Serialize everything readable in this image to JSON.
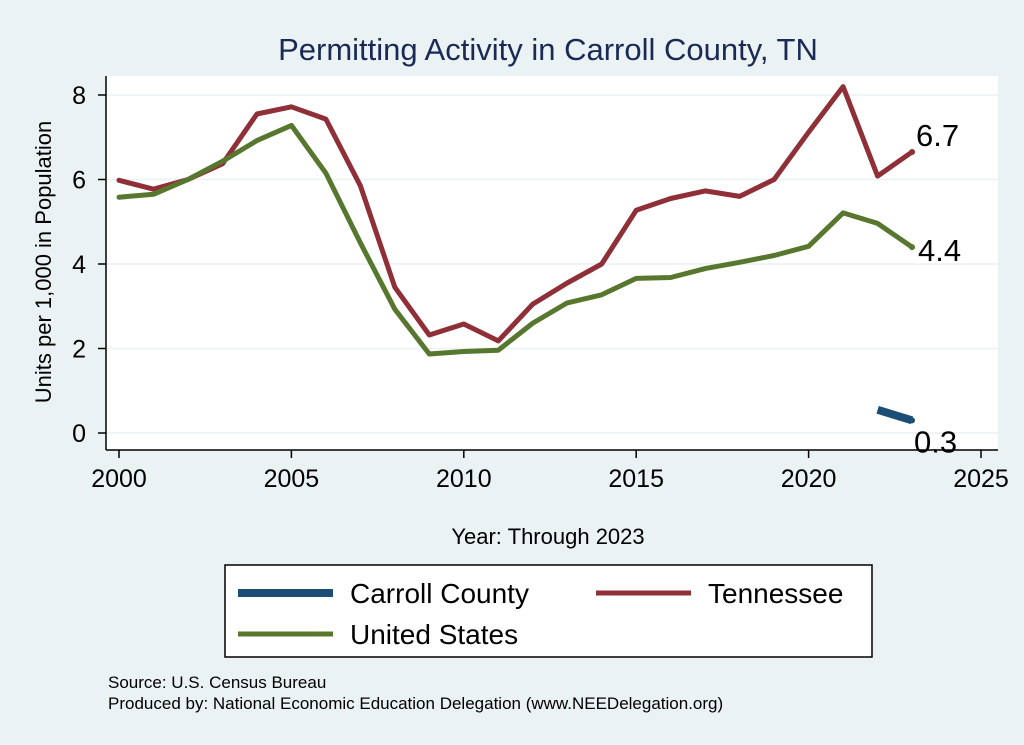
{
  "chart_data": {
    "type": "line",
    "title": "Permitting Activity in Carroll County, TN",
    "xlabel": "Year: Through 2023",
    "ylabel": "Units per 1,000 in Population",
    "xlim": [
      2000,
      2025
    ],
    "ylim": [
      0,
      8
    ],
    "xticks": [
      "2000",
      "2005",
      "2010",
      "2015",
      "2020",
      "2025"
    ],
    "yticks": [
      "0",
      "2",
      "4",
      "6",
      "8"
    ],
    "grid": true,
    "legend_position": "bottom",
    "series": [
      {
        "name": "Carroll County",
        "color": "#1c4d74",
        "x": [
          2022,
          2023
        ],
        "values": [
          0.55,
          0.3
        ],
        "end_label": "0.3"
      },
      {
        "name": "Tennessee",
        "color": "#8f2f37",
        "x": [
          2000,
          2001,
          2002,
          2003,
          2004,
          2005,
          2006,
          2007,
          2008,
          2009,
          2010,
          2011,
          2012,
          2013,
          2014,
          2015,
          2016,
          2017,
          2018,
          2019,
          2020,
          2021,
          2022,
          2023
        ],
        "values": [
          5.98,
          5.77,
          6.0,
          6.37,
          7.55,
          7.72,
          7.43,
          5.85,
          3.45,
          2.32,
          2.58,
          2.18,
          3.05,
          3.55,
          4.0,
          5.27,
          5.55,
          5.73,
          5.6,
          6.0,
          7.12,
          8.2,
          6.08,
          6.65
        ],
        "end_label": "6.7"
      },
      {
        "name": "United States",
        "color": "#58772e",
        "x": [
          2000,
          2001,
          2002,
          2003,
          2004,
          2005,
          2006,
          2007,
          2008,
          2009,
          2010,
          2011,
          2012,
          2013,
          2014,
          2015,
          2016,
          2017,
          2018,
          2019,
          2020,
          2021,
          2022,
          2023
        ],
        "values": [
          5.58,
          5.65,
          6.0,
          6.43,
          6.92,
          7.28,
          6.15,
          4.5,
          2.93,
          1.87,
          1.93,
          1.96,
          2.6,
          3.08,
          3.27,
          3.66,
          3.68,
          3.89,
          4.04,
          4.2,
          4.42,
          5.21,
          4.96,
          4.4
        ],
        "end_label": "4.4"
      }
    ],
    "legend": [
      "Carroll County",
      "Tennessee",
      "United States"
    ]
  },
  "source_note": "Source: U.S. Census Bureau",
  "producer_note": "Produced by: National Economic Education Delegation (www.NEEDelegation.org)",
  "colors": {
    "background": "#eaf2f3",
    "plot_background": "#ffffff",
    "grid": "#eaf2f3",
    "title": "#1a2a55"
  }
}
